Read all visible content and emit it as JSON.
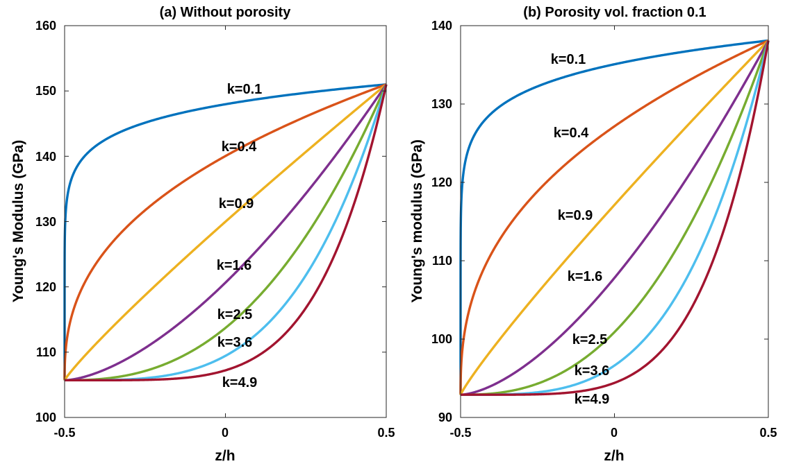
{
  "chart_data": [
    {
      "type": "line",
      "title": "(a) Without porosity",
      "xlabel": "z/h",
      "ylabel": "Young's Modulus (GPa)",
      "xlim": [
        -0.5,
        0.5
      ],
      "ylim": [
        100,
        160
      ],
      "xticks": [
        "-0.5",
        "0",
        "0.5"
      ],
      "yticks": [
        "100",
        "110",
        "120",
        "130",
        "140",
        "150",
        "160"
      ],
      "grid": false,
      "model": {
        "E_bottom": 105.7,
        "E_top": 151,
        "porosity": 0
      },
      "series": [
        {
          "name": "k=0.1",
          "k": 0.1,
          "color": "#0072BD"
        },
        {
          "name": "k=0.4",
          "k": 0.4,
          "color": "#D95319"
        },
        {
          "name": "k=0.9",
          "k": 0.9,
          "color": "#EDB120"
        },
        {
          "name": "k=1.6",
          "k": 1.6,
          "color": "#7E2F8E"
        },
        {
          "name": "k=2.5",
          "k": 2.5,
          "color": "#77AC30"
        },
        {
          "name": "k=3.6",
          "k": 3.6,
          "color": "#4DBEEE"
        },
        {
          "name": "k=4.9",
          "k": 4.9,
          "color": "#A2142F"
        }
      ]
    },
    {
      "type": "line",
      "title": "(b) Porosity vol. fraction 0.1",
      "xlabel": "z/h",
      "ylabel": "Young's modulus (GPa)",
      "xlim": [
        -0.5,
        0.5
      ],
      "ylim": [
        90,
        140
      ],
      "xticks": [
        "-0.5",
        "0",
        "0.5"
      ],
      "yticks": [
        "90",
        "100",
        "110",
        "120",
        "130",
        "140"
      ],
      "grid": false,
      "model": {
        "E_bottom": 92.9,
        "E_top": 138.1,
        "porosity": 0.1
      },
      "series": [
        {
          "name": "k=0.1",
          "k": 0.1,
          "color": "#0072BD"
        },
        {
          "name": "k=0.4",
          "k": 0.4,
          "color": "#D95319"
        },
        {
          "name": "k=0.9",
          "k": 0.9,
          "color": "#EDB120"
        },
        {
          "name": "k=1.6",
          "k": 1.6,
          "color": "#7E2F8E"
        },
        {
          "name": "k=2.5",
          "k": 2.5,
          "color": "#77AC30"
        },
        {
          "name": "k=3.6",
          "k": 3.6,
          "color": "#4DBEEE"
        },
        {
          "name": "k=4.9",
          "k": 4.9,
          "color": "#A2142F"
        }
      ]
    }
  ]
}
